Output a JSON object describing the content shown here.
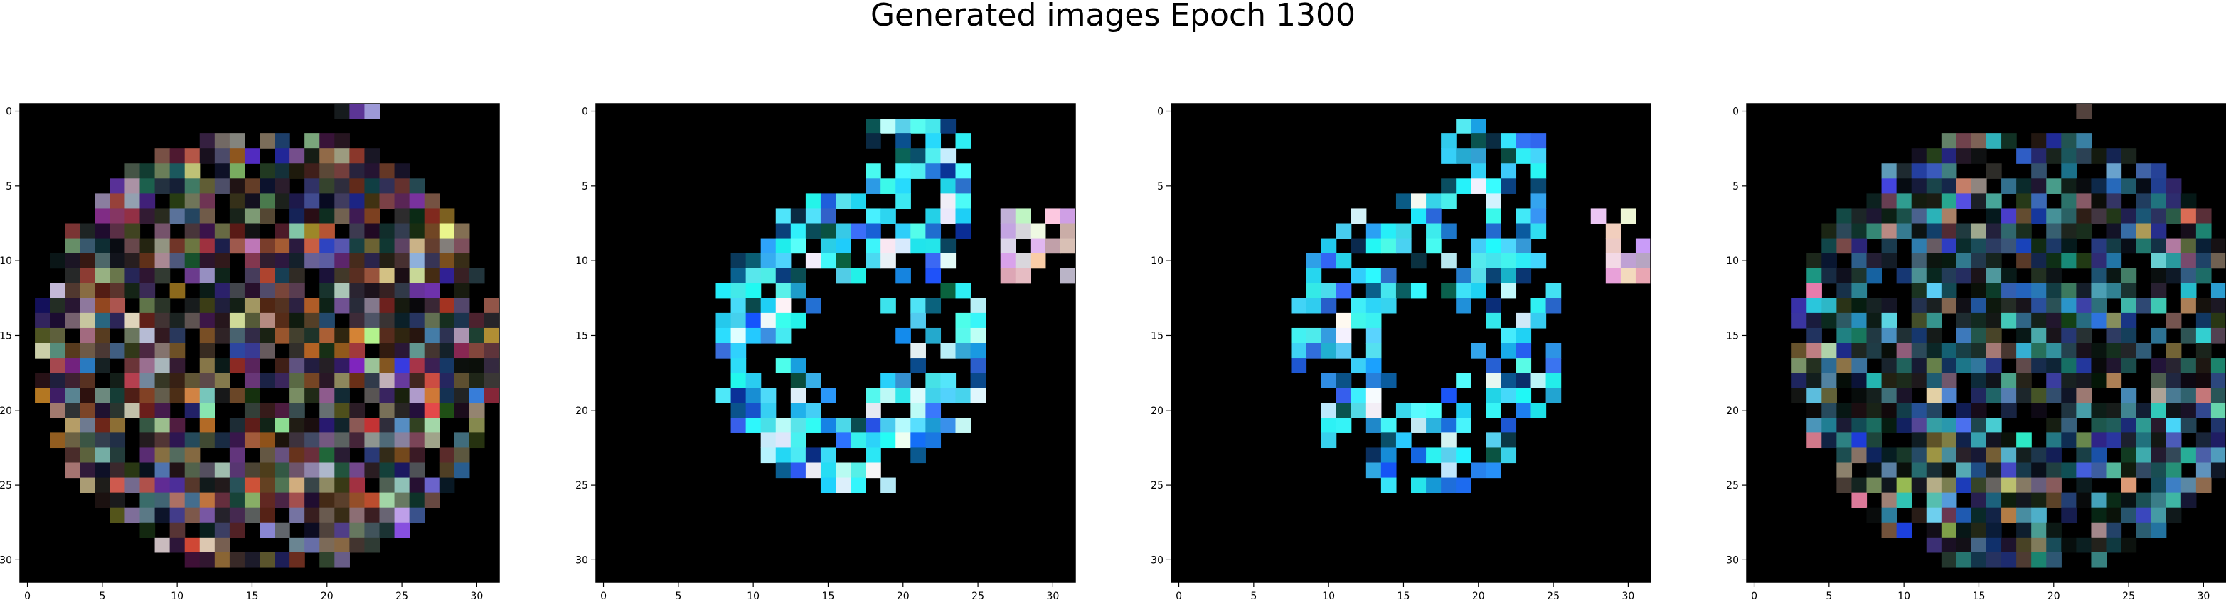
{
  "figure": {
    "title": "Generated images Epoch 1300"
  },
  "colors": {
    "pixel_background": "#000000",
    "axis": "#000000",
    "cyan_accent": "#1ee6f5",
    "blue_accent": "#1a4ef0"
  },
  "chart_data": [
    {
      "type": "heatmap",
      "title": "",
      "grid": false,
      "xlim": [
        -0.5,
        31.5
      ],
      "ylim": [
        31.5,
        -0.5
      ],
      "xticks": [
        0,
        5,
        10,
        15,
        20,
        25,
        30
      ],
      "yticks": [
        0,
        5,
        10,
        15,
        20,
        25,
        30
      ],
      "palette": "warm",
      "shape": [
        32,
        32
      ],
      "mask_rows": [
        "........................",
        "",
        "",
        "",
        "",
        "",
        "",
        "",
        "",
        "",
        "",
        "",
        "",
        "",
        "",
        "",
        "",
        "",
        "",
        "",
        "",
        "",
        "",
        "",
        "",
        "",
        "",
        "",
        "",
        "",
        "",
        ""
      ]
    },
    {
      "type": "heatmap",
      "title": "",
      "grid": false,
      "xlim": [
        -0.5,
        31.5
      ],
      "ylim": [
        31.5,
        -0.5
      ],
      "xticks": [
        0,
        5,
        10,
        15,
        20,
        25,
        30
      ],
      "yticks": [
        0,
        5,
        10,
        15,
        20,
        25,
        30
      ],
      "palette": "cyan",
      "shape": [
        32,
        32
      ]
    },
    {
      "type": "heatmap",
      "title": "",
      "grid": false,
      "xlim": [
        -0.5,
        31.5
      ],
      "ylim": [
        31.5,
        -0.5
      ],
      "xticks": [
        0,
        5,
        10,
        15,
        20,
        25,
        30
      ],
      "yticks": [
        0,
        5,
        10,
        15,
        20,
        25,
        30
      ],
      "palette": "cyan",
      "shape": [
        32,
        32
      ]
    },
    {
      "type": "heatmap",
      "title": "",
      "grid": false,
      "xlim": [
        -0.5,
        31.5
      ],
      "ylim": [
        31.5,
        -0.5
      ],
      "xticks": [
        0,
        5,
        10,
        15,
        20,
        25,
        30
      ],
      "yticks": [
        0,
        5,
        10,
        15,
        20,
        25,
        30
      ],
      "palette": "mixed",
      "shape": [
        32,
        32
      ]
    }
  ]
}
